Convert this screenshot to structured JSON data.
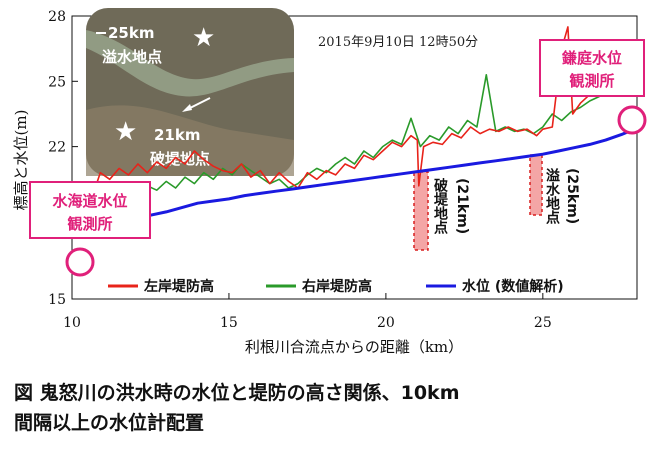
{
  "chart_data": {
    "type": "line",
    "title": "",
    "date_label": "2015年9月10日 12時50分",
    "xlabel": "利根川合流点からの距離（km）",
    "ylabel": "標高と水位(m)",
    "xlim": [
      10,
      28
    ],
    "ylim": [
      15,
      28
    ],
    "xticks": [
      10,
      15,
      20,
      25
    ],
    "yticks": [
      15,
      22,
      25,
      28
    ],
    "yticks_labeled": [
      "15",
      "22",
      "25",
      "28"
    ],
    "grid": false,
    "legend_position": "bottom",
    "series": [
      {
        "name": "左岸堤防高",
        "color": "#e8231a",
        "x": [
          10.0,
          10.3,
          10.6,
          10.9,
          11.2,
          11.5,
          11.8,
          12.1,
          12.4,
          12.7,
          13.0,
          13.3,
          13.6,
          13.9,
          14.2,
          14.5,
          14.8,
          15.1,
          15.4,
          15.7,
          16.0,
          16.3,
          16.6,
          16.9,
          17.2,
          17.5,
          17.8,
          18.1,
          18.4,
          18.7,
          19.0,
          19.3,
          19.6,
          19.9,
          20.2,
          20.5,
          20.8,
          21.0,
          21.05,
          21.2,
          21.5,
          21.8,
          22.1,
          22.4,
          22.7,
          23.0,
          23.3,
          23.6,
          23.9,
          24.2,
          24.5,
          24.8,
          25.0,
          25.3,
          25.6,
          25.8,
          25.95,
          26.2,
          26.5,
          26.8,
          27.1
        ],
        "values": [
          17.8,
          20.0,
          19.5,
          20.8,
          20.5,
          21.0,
          20.7,
          21.2,
          20.8,
          21.3,
          21.0,
          21.5,
          21.2,
          21.8,
          21.4,
          21.1,
          20.9,
          20.8,
          21.2,
          20.6,
          20.9,
          20.3,
          20.8,
          20.4,
          20.1,
          20.8,
          20.5,
          20.9,
          20.7,
          21.2,
          21.0,
          21.6,
          21.4,
          21.8,
          22.2,
          22.0,
          22.5,
          22.3,
          20.2,
          22.0,
          22.2,
          22.1,
          22.6,
          22.4,
          22.9,
          22.6,
          22.8,
          22.7,
          22.9,
          22.7,
          22.8,
          22.5,
          22.8,
          22.9,
          26.5,
          27.5,
          23.5,
          24.0,
          24.4,
          24.6,
          24.8
        ]
      },
      {
        "name": "右岸堤防高",
        "color": "#2a9a2a",
        "x": [
          10.0,
          10.3,
          10.6,
          10.9,
          11.2,
          11.5,
          11.8,
          12.1,
          12.4,
          12.7,
          13.0,
          13.3,
          13.6,
          13.9,
          14.2,
          14.5,
          14.8,
          15.1,
          15.4,
          15.7,
          16.0,
          16.3,
          16.6,
          16.9,
          17.2,
          17.5,
          17.8,
          18.1,
          18.4,
          18.7,
          19.0,
          19.3,
          19.6,
          19.9,
          20.2,
          20.5,
          20.8,
          21.1,
          21.4,
          21.7,
          22.0,
          22.3,
          22.6,
          22.9,
          23.2,
          23.5,
          23.8,
          24.1,
          24.4,
          24.7,
          25.0,
          25.3,
          25.6,
          25.9,
          26.2,
          26.5,
          26.8,
          27.1
        ],
        "values": [
          19.0,
          19.4,
          19.2,
          19.6,
          19.8,
          19.5,
          20.0,
          19.8,
          20.2,
          20.0,
          20.4,
          20.1,
          20.6,
          20.3,
          20.8,
          20.5,
          21.0,
          20.7,
          21.2,
          20.9,
          20.6,
          20.3,
          20.5,
          20.1,
          20.3,
          20.7,
          21.0,
          20.8,
          21.2,
          21.5,
          21.2,
          21.8,
          21.5,
          22.0,
          22.3,
          22.1,
          23.3,
          22.0,
          22.5,
          22.3,
          22.9,
          22.6,
          23.2,
          22.9,
          25.3,
          22.7,
          22.9,
          22.7,
          22.8,
          22.6,
          22.9,
          23.5,
          23.2,
          23.6,
          23.8,
          24.1,
          24.3,
          24.6
        ]
      },
      {
        "name": "水位 (数値解析)",
        "color": "#1a1ae0",
        "x": [
          10.0,
          10.5,
          11,
          11.5,
          12,
          12.5,
          13,
          13.5,
          14,
          14.5,
          15,
          15.5,
          16,
          16.5,
          17,
          17.5,
          18,
          18.5,
          19,
          19.5,
          20,
          20.5,
          21,
          21.5,
          22,
          22.5,
          23,
          23.5,
          24,
          24.5,
          25,
          25.5,
          26,
          26.5,
          27,
          27.5,
          28
        ],
        "values": [
          18.0,
          18.15,
          18.3,
          18.5,
          18.65,
          18.85,
          19.0,
          19.2,
          19.4,
          19.5,
          19.6,
          19.75,
          19.85,
          19.95,
          20.05,
          20.15,
          20.25,
          20.35,
          20.45,
          20.55,
          20.65,
          20.75,
          20.85,
          20.95,
          21.05,
          21.15,
          21.25,
          21.35,
          21.45,
          21.55,
          21.65,
          21.8,
          21.95,
          22.1,
          22.3,
          22.55,
          22.85
        ]
      }
    ],
    "annotations": {
      "breach": {
        "label": "破堤地点",
        "sub": "(21km)",
        "x": 21
      },
      "overflow": {
        "label": "溢水地点",
        "sub": "(25km)",
        "x": 25
      },
      "left_callout": [
        "水海道水位",
        "観測所"
      ],
      "right_callout": [
        "鎌庭水位",
        "観測所"
      ],
      "photo": {
        "overflow_label_1": "25km",
        "overflow_label_2": "溢水地点",
        "breach_label_1": "21km",
        "breach_label_2": "破堤地点"
      }
    }
  },
  "caption_line1": "図 鬼怒川の洪水時の水位と堤防の高さ関係、10km",
  "caption_line2": "間隔以上の水位計配置"
}
